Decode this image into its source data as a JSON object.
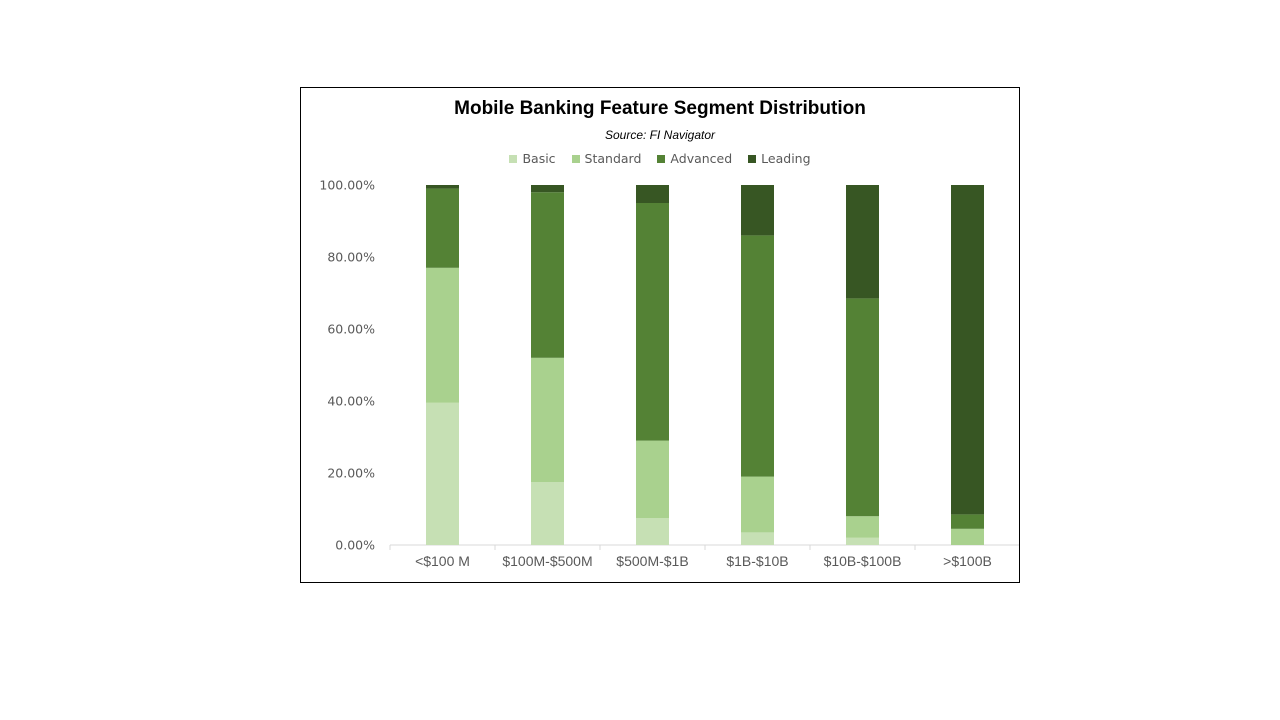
{
  "chart_data": {
    "type": "bar",
    "stacked": true,
    "title": "Mobile Banking Feature Segment Distribution",
    "subtitle": "Source: FI Navigator",
    "categories": [
      "<$100 M",
      "$100M-$500M",
      "$500M-$1B",
      "$1B-$10B",
      "$10B-$100B",
      ">$100B"
    ],
    "series": [
      {
        "name": "Basic",
        "color": "#c6e0b4",
        "values": [
          39.5,
          17.5,
          7.5,
          3.5,
          2.0,
          0.0
        ]
      },
      {
        "name": "Standard",
        "color": "#a9d18e",
        "values": [
          37.5,
          34.5,
          21.5,
          15.5,
          6.0,
          4.5
        ]
      },
      {
        "name": "Advanced",
        "color": "#548235",
        "values": [
          22.0,
          46.0,
          66.0,
          67.0,
          60.5,
          4.0
        ]
      },
      {
        "name": "Leading",
        "color": "#375623",
        "values": [
          1.0,
          2.0,
          5.0,
          14.0,
          31.5,
          91.5
        ]
      }
    ],
    "y_ticks": [
      "0.00%",
      "20.00%",
      "40.00%",
      "60.00%",
      "80.00%",
      "100.00%"
    ],
    "ylim": [
      0,
      100
    ],
    "grid": false,
    "legend_position": "top"
  }
}
